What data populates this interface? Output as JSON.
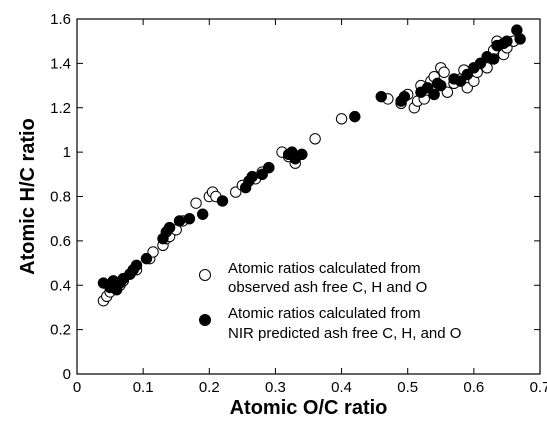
{
  "chart_data": {
    "type": "scatter",
    "title": "",
    "xlabel": "Atomic O/C ratio",
    "ylabel": "Atomic H/C ratio",
    "xlim": [
      0,
      0.7
    ],
    "ylim": [
      0,
      1.6
    ],
    "xticks": [
      "0",
      "0.1",
      "0.2",
      "0.3",
      "0.4",
      "0.5",
      "0.6",
      "0.7"
    ],
    "yticks": [
      "0",
      "0.2",
      "0.4",
      "0.6",
      "0.8",
      "1",
      "1.2",
      "1.4",
      "1.6"
    ],
    "grid": false,
    "legend_position": "lower-right",
    "series": [
      {
        "name_lines": [
          "Atomic ratios calculated from",
          "observed ash free C, H and O"
        ],
        "marker": "open-circle",
        "points": [
          [
            0.04,
            0.33
          ],
          [
            0.045,
            0.35
          ],
          [
            0.05,
            0.37
          ],
          [
            0.055,
            0.39
          ],
          [
            0.06,
            0.41
          ],
          [
            0.065,
            0.4
          ],
          [
            0.07,
            0.42
          ],
          [
            0.08,
            0.45
          ],
          [
            0.09,
            0.47
          ],
          [
            0.11,
            0.52
          ],
          [
            0.115,
            0.55
          ],
          [
            0.13,
            0.58
          ],
          [
            0.135,
            0.61
          ],
          [
            0.14,
            0.62
          ],
          [
            0.15,
            0.65
          ],
          [
            0.16,
            0.69
          ],
          [
            0.18,
            0.77
          ],
          [
            0.2,
            0.8
          ],
          [
            0.205,
            0.82
          ],
          [
            0.21,
            0.8
          ],
          [
            0.24,
            0.82
          ],
          [
            0.25,
            0.85
          ],
          [
            0.27,
            0.88
          ],
          [
            0.28,
            0.91
          ],
          [
            0.29,
            0.93
          ],
          [
            0.31,
            1.0
          ],
          [
            0.32,
            0.98
          ],
          [
            0.33,
            0.95
          ],
          [
            0.36,
            1.06
          ],
          [
            0.4,
            1.15
          ],
          [
            0.47,
            1.24
          ],
          [
            0.49,
            1.22
          ],
          [
            0.5,
            1.26
          ],
          [
            0.51,
            1.2
          ],
          [
            0.515,
            1.23
          ],
          [
            0.52,
            1.3
          ],
          [
            0.525,
            1.24
          ],
          [
            0.53,
            1.28
          ],
          [
            0.535,
            1.32
          ],
          [
            0.54,
            1.34
          ],
          [
            0.55,
            1.38
          ],
          [
            0.555,
            1.36
          ],
          [
            0.56,
            1.27
          ],
          [
            0.57,
            1.31
          ],
          [
            0.58,
            1.33
          ],
          [
            0.585,
            1.37
          ],
          [
            0.59,
            1.29
          ],
          [
            0.6,
            1.32
          ],
          [
            0.605,
            1.36
          ],
          [
            0.61,
            1.4
          ],
          [
            0.62,
            1.38
          ],
          [
            0.625,
            1.43
          ],
          [
            0.63,
            1.46
          ],
          [
            0.635,
            1.5
          ],
          [
            0.64,
            1.48
          ],
          [
            0.645,
            1.44
          ],
          [
            0.65,
            1.47
          ],
          [
            0.66,
            1.5
          ]
        ]
      },
      {
        "name_lines": [
          "Atomic ratios calculated from",
          "NIR predicted ash free C, H, and O"
        ],
        "marker": "filled-circle",
        "points": [
          [
            0.04,
            0.41
          ],
          [
            0.05,
            0.39
          ],
          [
            0.055,
            0.42
          ],
          [
            0.06,
            0.38
          ],
          [
            0.065,
            0.41
          ],
          [
            0.07,
            0.43
          ],
          [
            0.08,
            0.45
          ],
          [
            0.085,
            0.47
          ],
          [
            0.09,
            0.49
          ],
          [
            0.105,
            0.52
          ],
          [
            0.13,
            0.61
          ],
          [
            0.135,
            0.64
          ],
          [
            0.14,
            0.66
          ],
          [
            0.155,
            0.69
          ],
          [
            0.17,
            0.7
          ],
          [
            0.19,
            0.72
          ],
          [
            0.22,
            0.78
          ],
          [
            0.255,
            0.84
          ],
          [
            0.26,
            0.87
          ],
          [
            0.265,
            0.89
          ],
          [
            0.28,
            0.9
          ],
          [
            0.29,
            0.93
          ],
          [
            0.32,
            0.99
          ],
          [
            0.325,
            1.0
          ],
          [
            0.33,
            0.97
          ],
          [
            0.34,
            0.99
          ],
          [
            0.42,
            1.16
          ],
          [
            0.46,
            1.25
          ],
          [
            0.49,
            1.23
          ],
          [
            0.495,
            1.25
          ],
          [
            0.52,
            1.27
          ],
          [
            0.53,
            1.29
          ],
          [
            0.54,
            1.26
          ],
          [
            0.545,
            1.31
          ],
          [
            0.55,
            1.3
          ],
          [
            0.57,
            1.33
          ],
          [
            0.58,
            1.32
          ],
          [
            0.59,
            1.35
          ],
          [
            0.6,
            1.38
          ],
          [
            0.61,
            1.4
          ],
          [
            0.62,
            1.43
          ],
          [
            0.63,
            1.42
          ],
          [
            0.635,
            1.48
          ],
          [
            0.645,
            1.49
          ],
          [
            0.65,
            1.5
          ],
          [
            0.665,
            1.55
          ],
          [
            0.67,
            1.51
          ]
        ]
      }
    ]
  }
}
